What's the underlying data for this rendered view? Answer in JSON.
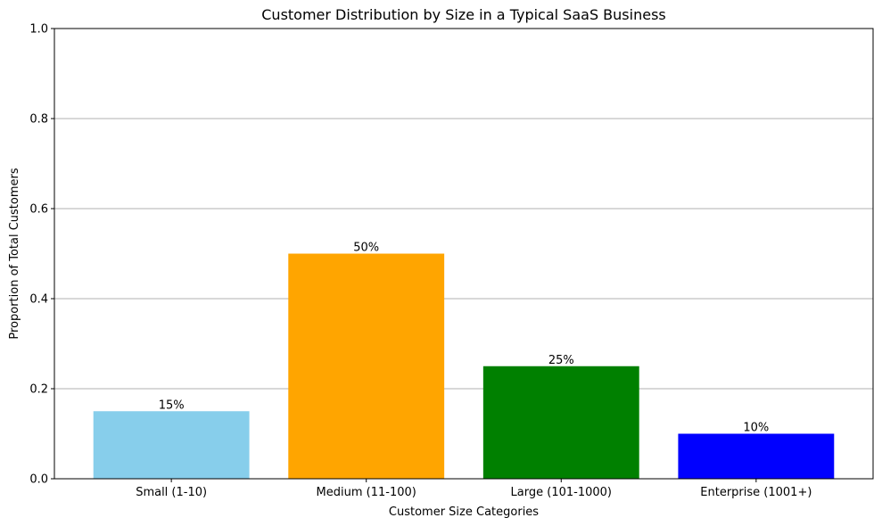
{
  "chart_data": {
    "type": "bar",
    "title": "Customer Distribution by Size in a Typical SaaS Business",
    "xlabel": "Customer Size Categories",
    "ylabel": "Proportion of Total Customers",
    "categories": [
      "Small (1-10)",
      "Medium (11-100)",
      "Large (101-1000)",
      "Enterprise (1001+)"
    ],
    "values": [
      0.15,
      0.5,
      0.25,
      0.1
    ],
    "data_labels": [
      "15%",
      "50%",
      "25%",
      "10%"
    ],
    "colors": [
      "#87ceeb",
      "#ffa500",
      "#008000",
      "#0000ff"
    ],
    "ylim": [
      0,
      1
    ],
    "yticks": [
      0.0,
      0.2,
      0.4,
      0.6,
      0.8,
      1.0
    ],
    "ytick_labels": [
      "0.0",
      "0.2",
      "0.4",
      "0.6",
      "0.8",
      "1.0"
    ],
    "grid": "y-axis only",
    "legend": "none"
  }
}
